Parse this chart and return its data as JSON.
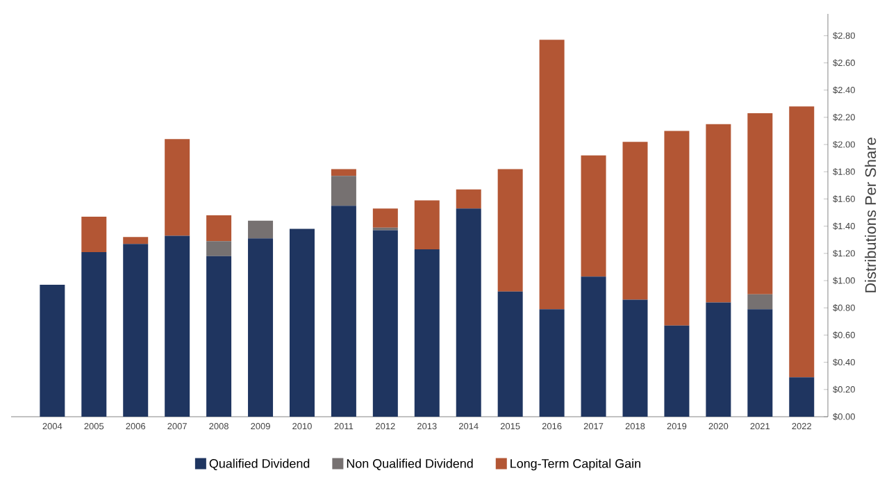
{
  "chart_data": {
    "type": "bar",
    "stacked": true,
    "ylabel": "Distributions Per Share",
    "categories": [
      "2004",
      "2005",
      "2006",
      "2007",
      "2008",
      "2009",
      "2010",
      "2011",
      "2012",
      "2013",
      "2014",
      "2015",
      "2016",
      "2017",
      "2018",
      "2019",
      "2020",
      "2021",
      "2022"
    ],
    "series": [
      {
        "name": "Qualified Dividend",
        "color": "#1f3560",
        "values": [
          0.97,
          1.21,
          1.27,
          1.33,
          1.18,
          1.31,
          1.38,
          1.55,
          1.37,
          1.23,
          1.53,
          0.92,
          0.79,
          1.03,
          0.86,
          0.67,
          0.84,
          0.79,
          0.29
        ]
      },
      {
        "name": "Non Qualified Dividend",
        "color": "#767171",
        "values": [
          0,
          0,
          0,
          0,
          0.11,
          0.13,
          0,
          0.22,
          0.02,
          0,
          0,
          0,
          0,
          0,
          0,
          0,
          0,
          0.11,
          0
        ]
      },
      {
        "name": "Long-Term Capital Gain",
        "color": "#b35634",
        "values": [
          0,
          0.26,
          0.05,
          0.71,
          0.19,
          0,
          0,
          0.05,
          0.14,
          0.36,
          0.14,
          0.9,
          1.98,
          0.89,
          1.16,
          1.43,
          1.31,
          1.33,
          1.99
        ]
      }
    ],
    "ylim": [
      0,
      2.96
    ],
    "yticks": [
      {
        "value": 0,
        "label": "$0.00"
      },
      {
        "value": 0.2,
        "label": "$0.20"
      },
      {
        "value": 0.4,
        "label": "$0.40"
      },
      {
        "value": 0.6,
        "label": "$0.60"
      },
      {
        "value": 0.8,
        "label": "$0.80"
      },
      {
        "value": 1.0,
        "label": "$1.00"
      },
      {
        "value": 1.2,
        "label": "$1.20"
      },
      {
        "value": 1.4,
        "label": "$1.40"
      },
      {
        "value": 1.6,
        "label": "$1.60"
      },
      {
        "value": 1.8,
        "label": "$1.80"
      },
      {
        "value": 2.0,
        "label": "$2.00"
      },
      {
        "value": 2.2,
        "label": "$2.20"
      },
      {
        "value": 2.4,
        "label": "$2.40"
      },
      {
        "value": 2.6,
        "label": "$2.60"
      },
      {
        "value": 2.8,
        "label": "$2.80"
      }
    ],
    "grid": false,
    "legend": "bottom"
  }
}
